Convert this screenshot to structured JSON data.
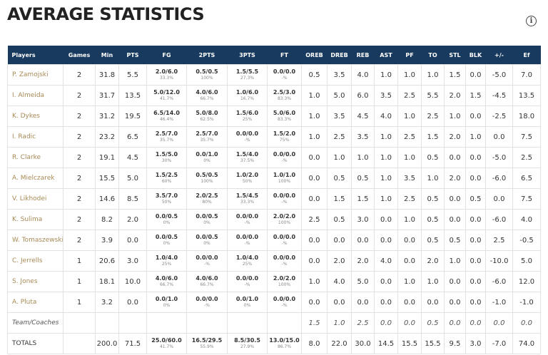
{
  "header": {
    "title": "AVERAGE STATISTICS",
    "info_icon": "i"
  },
  "table": {
    "columns": [
      "Players",
      "Games",
      "Min",
      "PTS",
      "FG",
      "2PTS",
      "3PTS",
      "FT",
      "OREB",
      "DREB",
      "REB",
      "AST",
      "PF",
      "TO",
      "STL",
      "BLK",
      "+/-",
      "Ef"
    ],
    "rows": [
      [
        "P. Zamojski",
        "2",
        "31.8",
        "5.5",
        [
          "2.0/6.0",
          "33.3%"
        ],
        [
          "0.5/0.5",
          "100%"
        ],
        [
          "1.5/5.5",
          "27.3%"
        ],
        [
          "0.0/0.0",
          "-%"
        ],
        "0.5",
        "3.5",
        "4.0",
        "1.0",
        "1.0",
        "1.0",
        "1.5",
        "0.0",
        "-5.0",
        "7.0"
      ],
      [
        "I. Almeida",
        "2",
        "31.7",
        "13.5",
        [
          "5.0/12.0",
          "41.7%"
        ],
        [
          "4.0/6.0",
          "66.7%"
        ],
        [
          "1.0/6.0",
          "16.7%"
        ],
        [
          "2.5/3.0",
          "83.3%"
        ],
        "1.0",
        "5.0",
        "6.0",
        "3.5",
        "2.5",
        "5.5",
        "2.0",
        "1.5",
        "-4.5",
        "13.5"
      ],
      [
        "K. Dykes",
        "2",
        "31.2",
        "19.5",
        [
          "6.5/14.0",
          "46.4%"
        ],
        [
          "5.0/8.0",
          "62.5%"
        ],
        [
          "1.5/6.0",
          "25%"
        ],
        [
          "5.0/6.0",
          "83.3%"
        ],
        "1.0",
        "3.5",
        "4.5",
        "4.0",
        "1.0",
        "2.5",
        "1.0",
        "0.0",
        "-2.5",
        "18.0"
      ],
      [
        "I. Radic",
        "2",
        "23.2",
        "6.5",
        [
          "2.5/7.0",
          "35.7%"
        ],
        [
          "2.5/7.0",
          "35.7%"
        ],
        [
          "0.0/0.0",
          "-%"
        ],
        [
          "1.5/2.0",
          "75%"
        ],
        "1.0",
        "2.5",
        "3.5",
        "1.0",
        "2.5",
        "1.5",
        "2.0",
        "1.0",
        "0.0",
        "7.5"
      ],
      [
        "R. Clarke",
        "2",
        "19.1",
        "4.5",
        [
          "1.5/5.0",
          "30%"
        ],
        [
          "0.0/1.0",
          "0%"
        ],
        [
          "1.5/4.0",
          "37.5%"
        ],
        [
          "0.0/0.0",
          "-%"
        ],
        "0.0",
        "1.0",
        "1.0",
        "1.0",
        "1.0",
        "0.5",
        "0.0",
        "0.0",
        "-5.0",
        "2.5"
      ],
      [
        "A. Mielczarek",
        "2",
        "15.5",
        "5.0",
        [
          "1.5/2.5",
          "60%"
        ],
        [
          "0.5/0.5",
          "100%"
        ],
        [
          "1.0/2.0",
          "50%"
        ],
        [
          "1.0/1.0",
          "100%"
        ],
        "0.0",
        "0.5",
        "0.5",
        "1.0",
        "3.5",
        "1.0",
        "2.0",
        "0.0",
        "-6.0",
        "6.5"
      ],
      [
        "V. Likhodei",
        "2",
        "14.6",
        "8.5",
        [
          "3.5/7.0",
          "50%"
        ],
        [
          "2.0/2.5",
          "80%"
        ],
        [
          "1.5/4.5",
          "33.3%"
        ],
        [
          "0.0/0.0",
          "-%"
        ],
        "0.0",
        "1.5",
        "1.5",
        "1.0",
        "2.5",
        "0.5",
        "0.0",
        "0.5",
        "0.0",
        "7.5"
      ],
      [
        "K. Sulima",
        "2",
        "8.2",
        "2.0",
        [
          "0.0/0.5",
          "0%"
        ],
        [
          "0.0/0.5",
          "0%"
        ],
        [
          "0.0/0.0",
          "-%"
        ],
        [
          "2.0/2.0",
          "100%"
        ],
        "2.5",
        "0.5",
        "3.0",
        "0.0",
        "1.0",
        "0.5",
        "0.0",
        "0.0",
        "-6.0",
        "4.0"
      ],
      [
        "W. Tomaszewski",
        "2",
        "3.9",
        "0.0",
        [
          "0.0/0.5",
          "0%"
        ],
        [
          "0.0/0.5",
          "0%"
        ],
        [
          "0.0/0.0",
          "-%"
        ],
        [
          "0.0/0.0",
          "-%"
        ],
        "0.0",
        "0.0",
        "0.0",
        "0.0",
        "0.0",
        "0.5",
        "0.5",
        "0.0",
        "2.5",
        "-0.5"
      ],
      [
        "C. Jerrells",
        "1",
        "20.6",
        "3.0",
        [
          "1.0/4.0",
          "25%"
        ],
        [
          "0.0/0.0",
          "-%"
        ],
        [
          "1.0/4.0",
          "25%"
        ],
        [
          "0.0/0.0",
          "-%"
        ],
        "0.0",
        "2.0",
        "2.0",
        "4.0",
        "0.0",
        "2.0",
        "1.0",
        "0.0",
        "-10.0",
        "5.0"
      ],
      [
        "S. Jones",
        "1",
        "18.1",
        "10.0",
        [
          "4.0/6.0",
          "66.7%"
        ],
        [
          "4.0/6.0",
          "66.7%"
        ],
        [
          "0.0/0.0",
          "-%"
        ],
        [
          "2.0/2.0",
          "100%"
        ],
        "1.0",
        "4.0",
        "5.0",
        "0.0",
        "1.0",
        "1.0",
        "0.0",
        "0.0",
        "-6.0",
        "12.0"
      ],
      [
        "A. Pluta",
        "1",
        "3.2",
        "0.0",
        [
          "0.0/1.0",
          "0%"
        ],
        [
          "0.0/0.0",
          "-%"
        ],
        [
          "0.0/1.0",
          "0%"
        ],
        [
          "0.0/0.0",
          "-%"
        ],
        "0.0",
        "0.0",
        "0.0",
        "0.0",
        "0.0",
        "0.0",
        "0.0",
        "0.0",
        "-1.0",
        "-1.0"
      ]
    ],
    "team": {
      "label": "Team/Coaches",
      "values": [
        "1.5",
        "1.0",
        "2.5",
        "0.0",
        "0.0",
        "0.5",
        "0.0",
        "0.0",
        "0.0",
        "0.0"
      ]
    },
    "totals": {
      "label": "TOTALS",
      "values": [
        "200.0",
        "71.5",
        [
          "25.0/60.0",
          "41.7%"
        ],
        [
          "16.5/29.5",
          "55.9%"
        ],
        [
          "8.5/30.5",
          "27.9%"
        ],
        [
          "13.0/15.0",
          "86.7%"
        ],
        "8.0",
        "22.0",
        "30.0",
        "14.5",
        "15.5",
        "15.5",
        "9.5",
        "3.0",
        "-7.0",
        "74.0"
      ]
    }
  }
}
